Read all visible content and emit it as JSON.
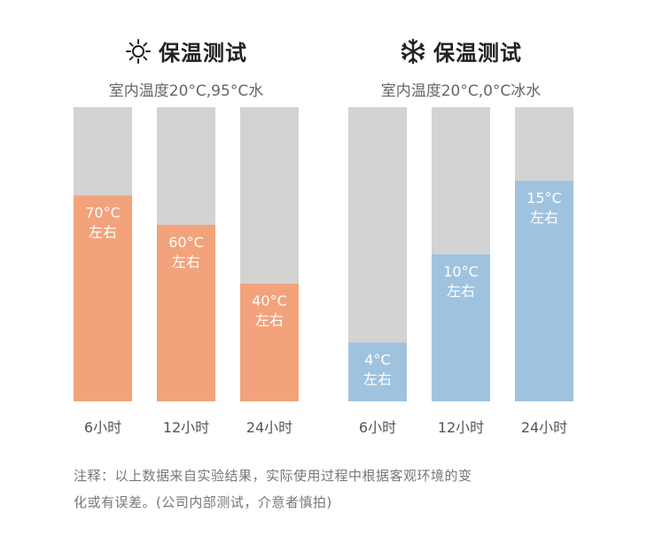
{
  "colors": {
    "track": "#d3d3d3",
    "hot_fill": "#f2a37b",
    "cold_fill": "#9fc3df",
    "title": "#222222",
    "subtitle": "#666666"
  },
  "chart_data": [
    {
      "type": "bar",
      "title": "保温测试",
      "title_icon": "sun-icon",
      "subtitle": "室内温度20°C,95°C水",
      "categories": [
        "6小时",
        "12小时",
        "24小时"
      ],
      "values": [
        70,
        60,
        40
      ],
      "value_labels": [
        "70°C",
        "60°C",
        "40°C"
      ],
      "approx_label": "左右",
      "ylim": [
        0,
        100
      ],
      "grid": false
    },
    {
      "type": "bar",
      "title": "保温测试",
      "title_icon": "snowflake-icon",
      "subtitle": "室内温度20°C,0°C冰水",
      "categories": [
        "6小时",
        "12小时",
        "24小时"
      ],
      "values": [
        4,
        10,
        15
      ],
      "value_labels": [
        "4°C",
        "10°C",
        "15°C"
      ],
      "approx_label": "左右",
      "ylim": [
        0,
        20
      ],
      "grid": false
    }
  ],
  "note": {
    "line1": "注释：以上数据来自实验结果，实际使用过程中根据客观环境的变",
    "line2": "化或有误差。(公司内部测试，介意者慎拍)"
  }
}
